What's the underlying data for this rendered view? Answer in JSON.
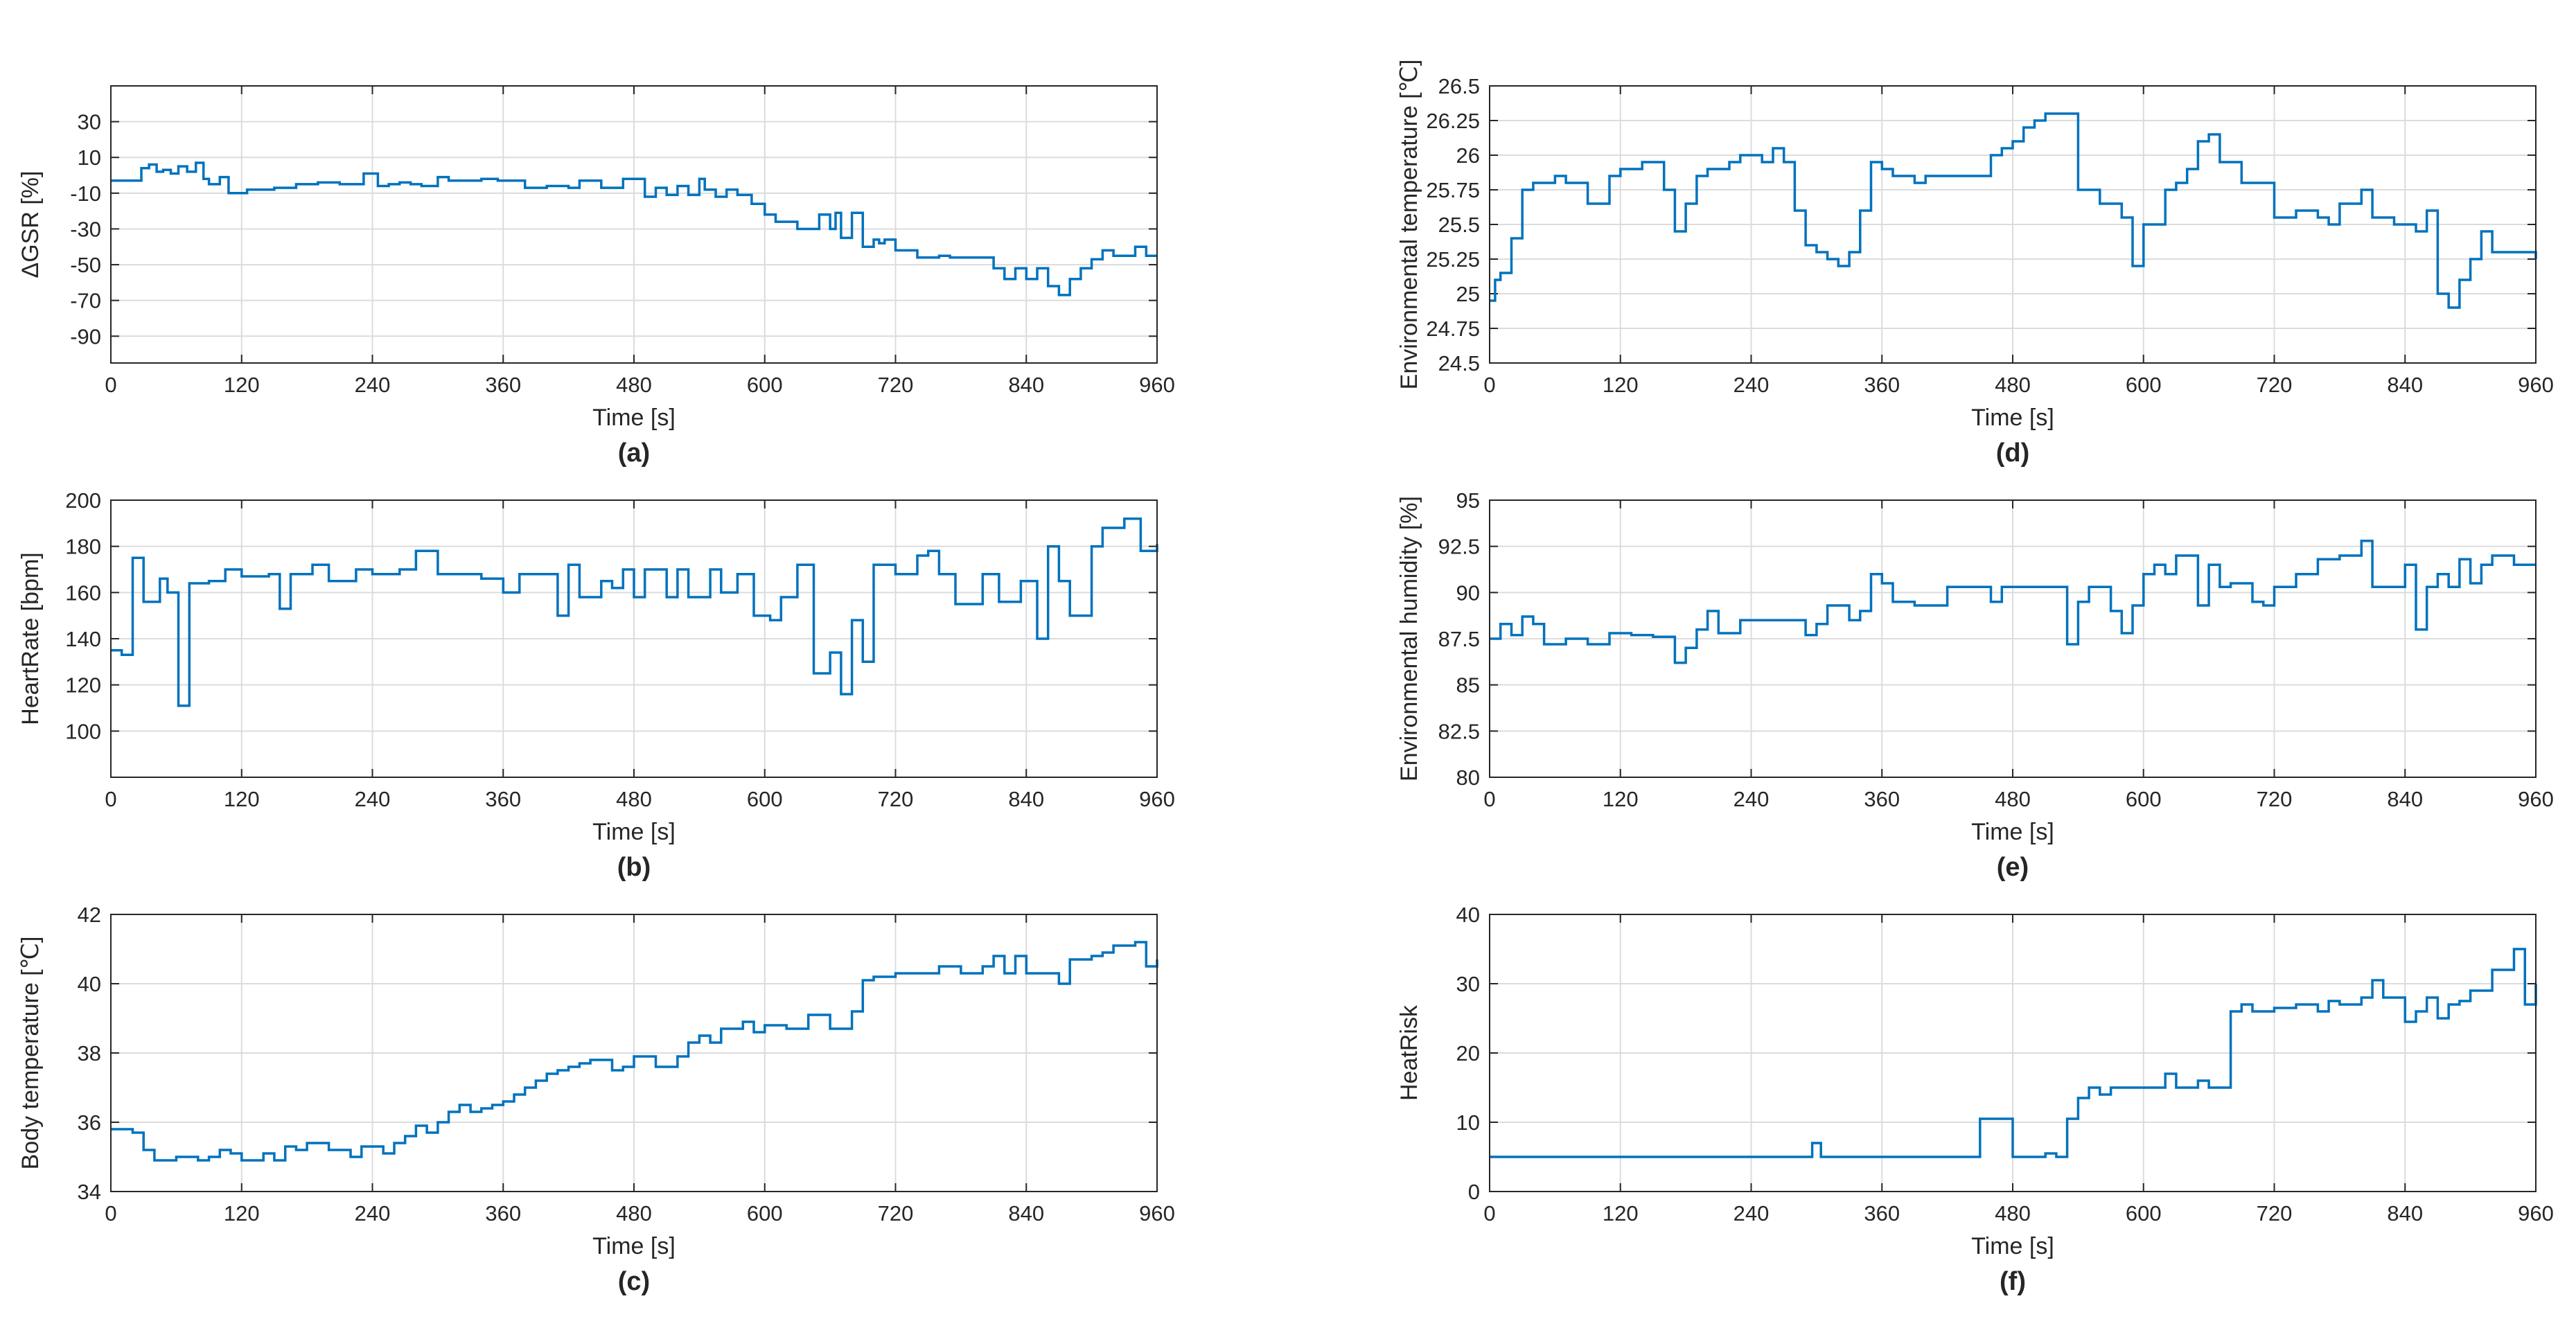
{
  "figure": {
    "series_color": "#0072BD",
    "grid_color": "#dcdcdc",
    "axis_color": "#262626"
  },
  "chart_data": [
    {
      "id": "a",
      "type": "line",
      "caption": "(a)",
      "xlabel": "Time [s]",
      "ylabel": "ΔGSR [%]",
      "xlim": [
        0,
        960
      ],
      "ylim": [
        -105,
        50
      ],
      "xticks": [
        0,
        120,
        240,
        360,
        480,
        600,
        720,
        840,
        960
      ],
      "yticks": [
        -90,
        -70,
        -50,
        -30,
        -10,
        10,
        30
      ],
      "ytick_labels": [
        "-90",
        "-70",
        "-50",
        "-30",
        "-10",
        "10",
        "30"
      ],
      "x": [
        0,
        25,
        28,
        35,
        42,
        48,
        55,
        62,
        70,
        78,
        85,
        90,
        100,
        108,
        125,
        150,
        170,
        190,
        210,
        232,
        245,
        255,
        265,
        275,
        285,
        300,
        310,
        325,
        340,
        355,
        370,
        380,
        400,
        420,
        430,
        450,
        470,
        490,
        500,
        510,
        520,
        530,
        540,
        545,
        555,
        565,
        575,
        588,
        600,
        610,
        620,
        630,
        650,
        660,
        665,
        670,
        680,
        690,
        700,
        705,
        710,
        720,
        740,
        760,
        770,
        800,
        810,
        820,
        830,
        840,
        850,
        860,
        870,
        880,
        890,
        900,
        910,
        920,
        930,
        940,
        950,
        960
      ],
      "y": [
        -3,
        -3,
        4,
        6,
        2,
        3,
        1,
        5,
        2,
        7,
        -2,
        -5,
        -1,
        -10,
        -8,
        -7,
        -5,
        -4,
        -5,
        1,
        -6,
        -5,
        -4,
        -5,
        -6,
        -1,
        -3,
        -3,
        -2,
        -3,
        -3,
        -7,
        -6,
        -7,
        -3,
        -7,
        -2,
        -12,
        -7,
        -11,
        -6,
        -11,
        -2,
        -8,
        -12,
        -8,
        -11,
        -16,
        -22,
        -26,
        -26,
        -30,
        -22,
        -30,
        -21,
        -35,
        -21,
        -40,
        -36,
        -38,
        -36,
        -42,
        -46,
        -45,
        -46,
        -46,
        -52,
        -58,
        -52,
        -58,
        -52,
        -62,
        -67,
        -58,
        -52,
        -47,
        -42,
        -45,
        -45,
        -40,
        -45,
        -45
      ]
    },
    {
      "id": "b",
      "type": "line",
      "caption": "(b)",
      "xlabel": "Time [s]",
      "ylabel": "HeartRate [bpm]",
      "xlim": [
        0,
        960
      ],
      "ylim": [
        80,
        200
      ],
      "xticks": [
        0,
        120,
        240,
        360,
        480,
        600,
        720,
        840,
        960
      ],
      "yticks": [
        100,
        120,
        140,
        160,
        180,
        200
      ],
      "ytick_labels": [
        "100",
        "120",
        "140",
        "160",
        "180",
        "200"
      ],
      "x": [
        0,
        10,
        20,
        30,
        45,
        52,
        62,
        72,
        90,
        105,
        120,
        145,
        155,
        165,
        185,
        200,
        225,
        240,
        265,
        280,
        300,
        340,
        360,
        375,
        410,
        420,
        430,
        450,
        460,
        470,
        480,
        490,
        510,
        520,
        530,
        550,
        560,
        575,
        590,
        605,
        615,
        630,
        645,
        660,
        670,
        680,
        690,
        700,
        720,
        740,
        750,
        760,
        775,
        800,
        815,
        835,
        850,
        860,
        870,
        880,
        900,
        910,
        930,
        945,
        960
      ],
      "y": [
        135,
        133,
        175,
        156,
        166,
        160,
        111,
        164,
        165,
        170,
        167,
        168,
        153,
        168,
        172,
        165,
        170,
        168,
        170,
        178,
        168,
        166,
        160,
        168,
        150,
        172,
        158,
        165,
        162,
        170,
        158,
        170,
        158,
        170,
        158,
        170,
        160,
        168,
        150,
        148,
        158,
        172,
        125,
        134,
        116,
        148,
        130,
        172,
        168,
        176,
        178,
        168,
        155,
        168,
        156,
        165,
        140,
        180,
        165,
        150,
        180,
        188,
        192,
        178,
        181
      ]
    },
    {
      "id": "c",
      "type": "line",
      "caption": "(c)",
      "xlabel": "Time [s]",
      "ylabel": "Body temperature [℃]",
      "xlim": [
        0,
        960
      ],
      "ylim": [
        34,
        42
      ],
      "xticks": [
        0,
        120,
        240,
        360,
        480,
        600,
        720,
        840,
        960
      ],
      "yticks": [
        34,
        36,
        38,
        40,
        42
      ],
      "ytick_labels": [
        "34",
        "36",
        "38",
        "40",
        "42"
      ],
      "x": [
        0,
        20,
        30,
        40,
        60,
        80,
        90,
        100,
        110,
        120,
        140,
        150,
        160,
        170,
        180,
        200,
        220,
        230,
        250,
        260,
        270,
        280,
        290,
        300,
        310,
        320,
        330,
        340,
        350,
        360,
        370,
        380,
        390,
        400,
        410,
        420,
        430,
        440,
        450,
        460,
        470,
        480,
        500,
        520,
        530,
        540,
        550,
        560,
        580,
        590,
        600,
        620,
        640,
        660,
        680,
        690,
        700,
        720,
        740,
        760,
        780,
        800,
        810,
        820,
        830,
        840,
        860,
        870,
        880,
        900,
        910,
        920,
        940,
        950,
        960
      ],
      "y": [
        35.8,
        35.7,
        35.2,
        34.9,
        35.0,
        34.9,
        35.0,
        35.2,
        35.1,
        34.9,
        35.1,
        34.9,
        35.3,
        35.2,
        35.4,
        35.2,
        35.0,
        35.3,
        35.1,
        35.4,
        35.6,
        35.9,
        35.7,
        36.0,
        36.3,
        36.5,
        36.3,
        36.4,
        36.5,
        36.6,
        36.8,
        37.0,
        37.2,
        37.4,
        37.5,
        37.6,
        37.7,
        37.8,
        37.8,
        37.5,
        37.6,
        37.9,
        37.6,
        37.9,
        38.3,
        38.5,
        38.3,
        38.7,
        38.9,
        38.6,
        38.8,
        38.7,
        39.1,
        38.7,
        39.2,
        40.1,
        40.2,
        40.3,
        40.3,
        40.5,
        40.3,
        40.5,
        40.8,
        40.3,
        40.8,
        40.3,
        40.3,
        40.0,
        40.7,
        40.8,
        40.9,
        41.1,
        41.2,
        40.5,
        40.7
      ]
    },
    {
      "id": "d",
      "type": "line",
      "caption": "(d)",
      "xlabel": "Time [s]",
      "ylabel": "Environmental temperature [℃]",
      "xlim": [
        0,
        960
      ],
      "ylim": [
        24.5,
        26.5
      ],
      "xticks": [
        0,
        120,
        240,
        360,
        480,
        600,
        720,
        840,
        960
      ],
      "yticks": [
        24.5,
        24.75,
        25,
        25.25,
        25.5,
        25.75,
        26,
        26.25,
        26.5
      ],
      "ytick_labels": [
        "24.5",
        "24.75",
        "25",
        "25.25",
        "25.5",
        "25.75",
        "26",
        "26.25",
        "26.5"
      ],
      "x": [
        0,
        5,
        10,
        20,
        30,
        40,
        60,
        70,
        90,
        110,
        120,
        140,
        160,
        170,
        180,
        190,
        200,
        220,
        230,
        250,
        260,
        270,
        280,
        290,
        300,
        310,
        320,
        330,
        340,
        350,
        360,
        370,
        390,
        400,
        420,
        440,
        460,
        470,
        480,
        490,
        500,
        510,
        520,
        530,
        540,
        550,
        560,
        580,
        590,
        600,
        610,
        620,
        630,
        640,
        650,
        660,
        670,
        690,
        700,
        720,
        740,
        760,
        770,
        780,
        800,
        810,
        820,
        830,
        840,
        850,
        860,
        870,
        880,
        890,
        900,
        910,
        920,
        940,
        960
      ],
      "y": [
        24.95,
        25.1,
        25.15,
        25.4,
        25.75,
        25.8,
        25.85,
        25.8,
        25.65,
        25.85,
        25.9,
        25.95,
        25.75,
        25.45,
        25.65,
        25.85,
        25.9,
        25.95,
        26.0,
        25.95,
        26.05,
        25.95,
        25.6,
        25.35,
        25.3,
        25.25,
        25.2,
        25.3,
        25.6,
        25.95,
        25.9,
        25.85,
        25.8,
        25.85,
        25.85,
        25.85,
        26.0,
        26.05,
        26.1,
        26.2,
        26.25,
        26.3,
        26.3,
        26.3,
        25.75,
        25.75,
        25.65,
        25.55,
        25.2,
        25.5,
        25.5,
        25.75,
        25.8,
        25.9,
        26.1,
        26.15,
        25.95,
        25.8,
        25.8,
        25.55,
        25.6,
        25.55,
        25.5,
        25.65,
        25.75,
        25.55,
        25.55,
        25.5,
        25.5,
        25.45,
        25.6,
        25.0,
        24.9,
        25.1,
        25.25,
        25.45,
        25.3,
        25.3,
        25.25
      ]
    },
    {
      "id": "e",
      "type": "line",
      "caption": "(e)",
      "xlabel": "Time [s]",
      "ylabel": "Environmental humidity [%]",
      "xlim": [
        0,
        960
      ],
      "ylim": [
        80,
        95
      ],
      "xticks": [
        0,
        120,
        240,
        360,
        480,
        600,
        720,
        840,
        960
      ],
      "yticks": [
        80,
        82.5,
        85,
        87.5,
        90,
        92.5,
        95
      ],
      "ytick_labels": [
        "80",
        "82.5",
        "85",
        "87.5",
        "90",
        "92.5",
        "95"
      ],
      "x": [
        0,
        10,
        20,
        30,
        40,
        50,
        70,
        90,
        110,
        130,
        150,
        170,
        180,
        190,
        200,
        210,
        230,
        250,
        270,
        290,
        300,
        310,
        330,
        340,
        350,
        360,
        370,
        380,
        390,
        400,
        420,
        440,
        460,
        470,
        480,
        490,
        500,
        520,
        530,
        540,
        550,
        560,
        570,
        580,
        590,
        600,
        610,
        620,
        630,
        640,
        650,
        660,
        670,
        680,
        700,
        710,
        720,
        740,
        760,
        780,
        800,
        810,
        820,
        840,
        850,
        860,
        870,
        880,
        890,
        900,
        910,
        920,
        940,
        960
      ],
      "y": [
        87.5,
        88.3,
        87.7,
        88.7,
        88.3,
        87.2,
        87.5,
        87.2,
        87.8,
        87.7,
        87.6,
        86.2,
        87.0,
        88.0,
        89.0,
        87.8,
        88.5,
        88.5,
        88.5,
        87.7,
        88.3,
        89.3,
        88.5,
        89.0,
        91.0,
        90.5,
        89.5,
        89.5,
        89.3,
        89.3,
        90.3,
        90.3,
        89.5,
        90.3,
        90.3,
        90.3,
        90.3,
        90.3,
        87.2,
        89.5,
        90.3,
        90.3,
        89.0,
        87.8,
        89.3,
        91.0,
        91.5,
        91.0,
        92.0,
        92.0,
        89.3,
        91.5,
        90.3,
        90.5,
        89.5,
        89.3,
        90.3,
        91.0,
        91.8,
        92.0,
        92.8,
        90.3,
        90.3,
        91.5,
        88.0,
        90.3,
        91.0,
        90.3,
        91.8,
        90.5,
        91.5,
        92.0,
        91.5,
        91.5
      ]
    },
    {
      "id": "f",
      "type": "line",
      "caption": "(f)",
      "xlabel": "Time [s]",
      "ylabel": "HeatRisk",
      "xlim": [
        0,
        960
      ],
      "ylim": [
        0,
        40
      ],
      "xticks": [
        0,
        120,
        240,
        360,
        480,
        600,
        720,
        840,
        960
      ],
      "yticks": [
        0,
        10,
        20,
        30,
        40
      ],
      "ytick_labels": [
        "0",
        "10",
        "20",
        "30",
        "40"
      ],
      "x": [
        0,
        296,
        304,
        450,
        480,
        490,
        500,
        510,
        520,
        530,
        540,
        550,
        560,
        570,
        580,
        620,
        630,
        650,
        660,
        670,
        680,
        690,
        700,
        720,
        740,
        760,
        770,
        780,
        800,
        810,
        820,
        840,
        850,
        860,
        870,
        880,
        890,
        900,
        910,
        920,
        940,
        950,
        960
      ],
      "y": [
        5,
        7,
        5,
        10.5,
        5,
        5,
        5,
        5.5,
        5,
        10.5,
        13.5,
        15,
        14,
        15,
        15,
        17,
        15,
        16,
        15,
        15,
        26,
        27,
        26,
        26.5,
        27,
        26,
        27.5,
        27,
        28,
        30.5,
        28,
        24.5,
        26,
        28,
        25,
        27,
        27.5,
        29,
        29,
        32,
        35,
        27,
        30
      ]
    }
  ]
}
